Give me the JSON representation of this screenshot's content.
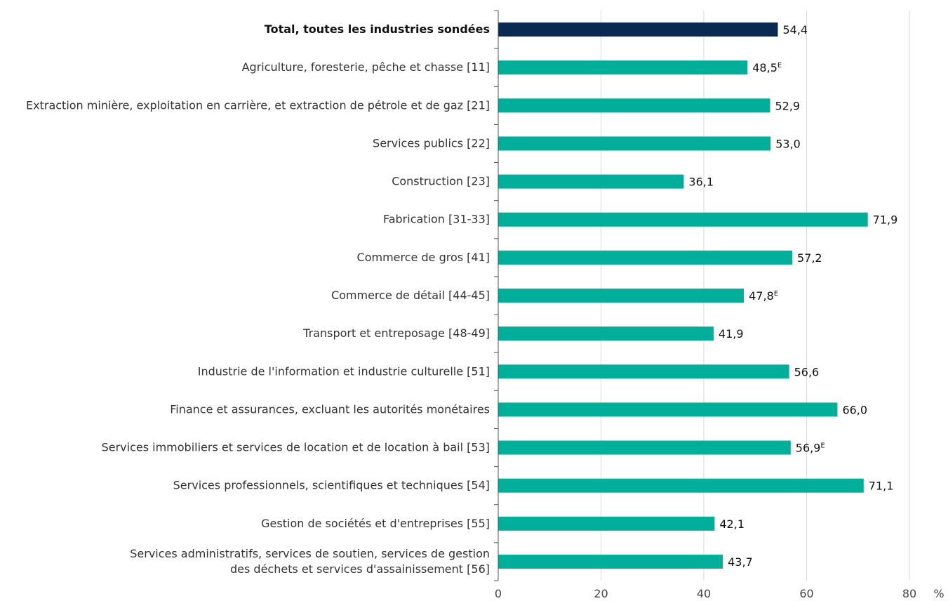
{
  "chart_data": {
    "type": "bar",
    "orientation": "horizontal",
    "categories": [
      "Total, toutes les industries sondées",
      "Agriculture, foresterie, pêche et chasse [11]",
      "Extraction minière, exploitation en carrière, et extraction de pétrole et de gaz [21]",
      "Services publics [22]",
      "Construction [23]",
      "Fabrication [31-33]",
      "Commerce de gros [41]",
      "Commerce de détail [44-45]",
      "Transport et entreposage [48-49]",
      "Industrie de l'information et industrie culturelle [51]",
      "Finance et assurances, excluant les autorités monétaires",
      "Services immobiliers et services de location et de location à bail [53]",
      "Services professionnels, scientifiques et techniques [54]",
      "Gestion de sociétés et d'entreprises [55]",
      "Services administratifs, services de soutien, services de gestion\ndes déchets et services d'assainissement [56]"
    ],
    "values": [
      54.4,
      48.5,
      52.9,
      53.0,
      36.1,
      71.9,
      57.2,
      47.8,
      41.9,
      56.6,
      66.0,
      56.9,
      71.1,
      42.1,
      43.7
    ],
    "value_labels": [
      "54,4",
      "48,5",
      "52,9",
      "53,0",
      "36,1",
      "71,9",
      "57,2",
      "47,8",
      "41,9",
      "56,6",
      "66,0",
      "56,9",
      "71,1",
      "42,1",
      "43,7"
    ],
    "flags": [
      "",
      "E",
      "",
      "",
      "",
      "",
      "",
      "E",
      "",
      "",
      "",
      "E",
      "",
      "",
      ""
    ],
    "highlight_index": 0,
    "xlim": [
      0,
      80
    ],
    "xticks": [
      0,
      20,
      40,
      60,
      80
    ],
    "xtick_labels": [
      "0",
      "20",
      "40",
      "60",
      "80"
    ],
    "unit": "%",
    "grid": "vertical",
    "colors": {
      "bar": "#00ae99",
      "highlight": "#0a2a52"
    }
  }
}
